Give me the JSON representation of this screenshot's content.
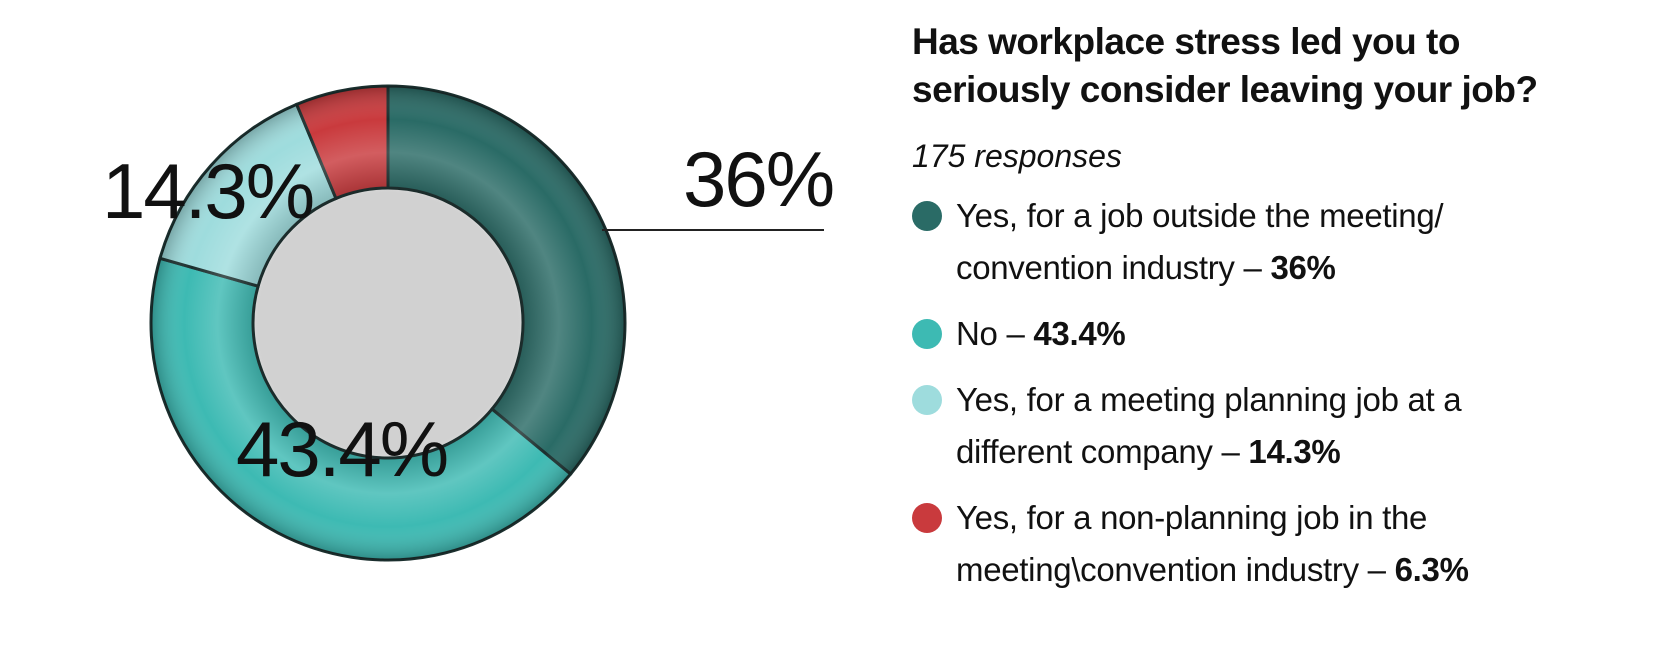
{
  "chart_data": {
    "type": "pie",
    "donut": true,
    "title": "Has workplace stress led you to seriously consider leaving your job?",
    "subtitle": "175 responses",
    "slices": [
      {
        "label": "Yes, for a job outside the meeting/ convention industry",
        "value": 36,
        "value_text": "36%",
        "color": "#2a6b66"
      },
      {
        "label": "No",
        "value": 43.4,
        "value_text": "43.4%",
        "color": "#3dbab3"
      },
      {
        "label": "Yes, for a meeting planning job at a different company",
        "value": 14.3,
        "value_text": "14.3%",
        "color": "#9edcdd"
      },
      {
        "label": "Yes, for a non-planning job in the meeting\\convention industry",
        "value": 6.3,
        "value_text": "6.3%",
        "color": "#c93a3d"
      }
    ],
    "legend_position": "right"
  },
  "legend_separator": "–",
  "slice_labels": [
    "36%",
    "43.4%",
    "14.3%"
  ]
}
